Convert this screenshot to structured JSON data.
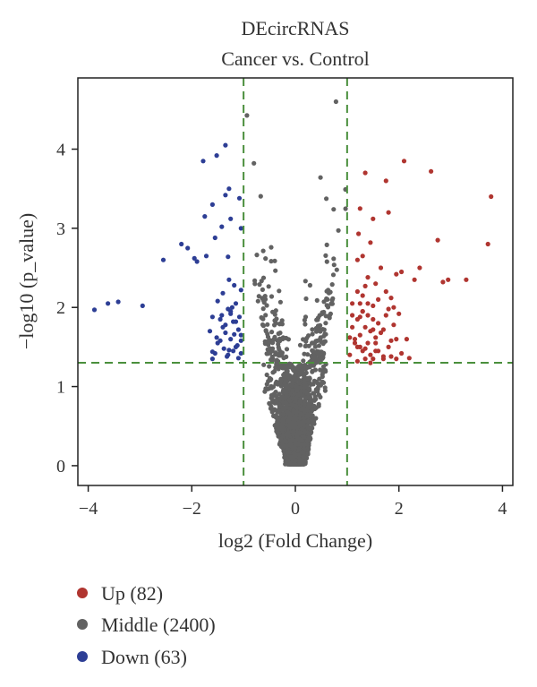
{
  "chart_data": {
    "type": "scatter",
    "title": "DEcircRNAS",
    "subtitle": "Cancer vs. Control",
    "xlabel": "log2 (Fold Change)",
    "ylabel": "−log10 (p_value)",
    "xlim": [
      -4.2,
      4.2
    ],
    "ylim": [
      -0.25,
      4.9
    ],
    "xticks": [
      -4,
      -2,
      0,
      2,
      4
    ],
    "xtick_labels": [
      "−4",
      "−2",
      "0",
      "2",
      "4"
    ],
    "yticks": [
      0,
      1,
      2,
      3,
      4
    ],
    "ytick_labels": [
      "0",
      "1",
      "2",
      "3",
      "4"
    ],
    "grid": false,
    "legend_position": "bottom-left",
    "thresholds": {
      "fold_change_log2": [
        -1,
        1
      ],
      "neg_log10_p": 1.3
    },
    "threshold_color": "#4a8f3c",
    "series": [
      {
        "name": "Up",
        "legend_label": "Up (82)",
        "count": 82,
        "color": "#b03530",
        "x": [
          1.35,
          1.75,
          2.1,
          2.62,
          3.78,
          1.25,
          1.5,
          1.8,
          1.95,
          1.22,
          1.45,
          1.3,
          2.75,
          3.72,
          2.4,
          2.05,
          1.65,
          1.4,
          1.35,
          2.3,
          1.2,
          1.55,
          2.85,
          2.95,
          3.3,
          1.25,
          1.75,
          1.85,
          1.5,
          1.9,
          2.0,
          1.3,
          1.6,
          1.1,
          1.45,
          1.2,
          1.35,
          1.7,
          1.55,
          1.95,
          2.15,
          1.4,
          1.25,
          1.8,
          1.3,
          1.6,
          1.05,
          1.15,
          1.5,
          1.85,
          1.35,
          1.45,
          1.2,
          1.7,
          1.25,
          1.5,
          1.3,
          1.1,
          1.55,
          1.4,
          2.05,
          1.65,
          1.15,
          1.95,
          2.2,
          1.8,
          1.5,
          1.35,
          1.25,
          1.05,
          1.2,
          1.6,
          1.75,
          1.85,
          1.45,
          1.9,
          1.3,
          1.1,
          1.4,
          1.7,
          1.55,
          1.2
        ],
        "y": [
          3.7,
          3.6,
          3.85,
          3.72,
          3.4,
          3.25,
          3.12,
          3.2,
          2.42,
          2.93,
          2.82,
          2.65,
          2.85,
          2.8,
          2.5,
          2.45,
          2.5,
          2.38,
          2.27,
          2.35,
          2.2,
          2.3,
          2.32,
          2.35,
          2.35,
          2.05,
          2.2,
          2.12,
          2.02,
          2.0,
          1.92,
          1.95,
          1.8,
          2.05,
          1.7,
          1.85,
          1.75,
          1.72,
          1.62,
          1.6,
          1.6,
          1.55,
          1.5,
          1.5,
          1.45,
          1.45,
          1.4,
          1.55,
          1.35,
          1.38,
          1.35,
          1.3,
          1.32,
          1.35,
          1.65,
          1.85,
          1.95,
          1.75,
          1.55,
          1.9,
          1.42,
          1.68,
          1.6,
          1.35,
          1.36,
          1.98,
          1.72,
          1.48,
          1.88,
          1.62,
          1.5,
          2.1,
          1.9,
          1.58,
          1.4,
          1.78,
          2.15,
          1.9,
          2.05,
          1.38,
          1.45,
          2.6
        ]
      },
      {
        "name": "Middle",
        "legend_label": "Middle (2400)",
        "count": 2400,
        "color": "#626262"
      },
      {
        "name": "Down",
        "legend_label": "Down (63)",
        "count": 63,
        "color": "#2d3e95",
        "x": [
          -3.88,
          -3.62,
          -3.42,
          -2.95,
          -2.55,
          -2.2,
          -2.08,
          -1.52,
          -1.35,
          -1.78,
          -1.6,
          -1.28,
          -1.35,
          -1.08,
          -1.25,
          -1.75,
          -1.05,
          -1.42,
          -1.55,
          -1.72,
          -1.9,
          -1.95,
          -1.3,
          -1.05,
          -1.28,
          -1.18,
          -1.4,
          -1.15,
          -1.3,
          -1.5,
          -1.25,
          -1.6,
          -1.2,
          -1.45,
          -1.35,
          -1.1,
          -1.65,
          -1.25,
          -1.05,
          -1.5,
          -1.15,
          -1.38,
          -1.2,
          -1.55,
          -1.32,
          -1.05,
          -1.6,
          -1.1,
          -1.3,
          -1.45,
          -1.18,
          -1.4,
          -1.08,
          -1.25,
          -1.52,
          -1.12,
          -1.35,
          -1.22,
          -1.05,
          -1.42,
          -1.28,
          -1.15,
          -1.6
        ],
        "y": [
          1.97,
          2.05,
          2.07,
          2.02,
          2.6,
          2.8,
          2.75,
          3.92,
          4.05,
          3.85,
          3.3,
          3.5,
          3.42,
          3.38,
          3.12,
          3.15,
          3.0,
          3.02,
          2.88,
          2.65,
          2.58,
          2.62,
          2.64,
          2.22,
          2.35,
          2.28,
          2.18,
          2.05,
          1.98,
          2.08,
          1.92,
          1.88,
          1.82,
          1.85,
          1.78,
          1.72,
          1.7,
          1.6,
          1.65,
          1.55,
          1.5,
          1.48,
          1.45,
          1.42,
          1.38,
          1.42,
          1.35,
          1.36,
          1.4,
          1.58,
          1.66,
          1.75,
          1.88,
          1.95,
          1.62,
          1.52,
          1.68,
          2.0,
          1.58,
          1.9,
          1.46,
          1.82,
          1.44
        ]
      }
    ]
  }
}
